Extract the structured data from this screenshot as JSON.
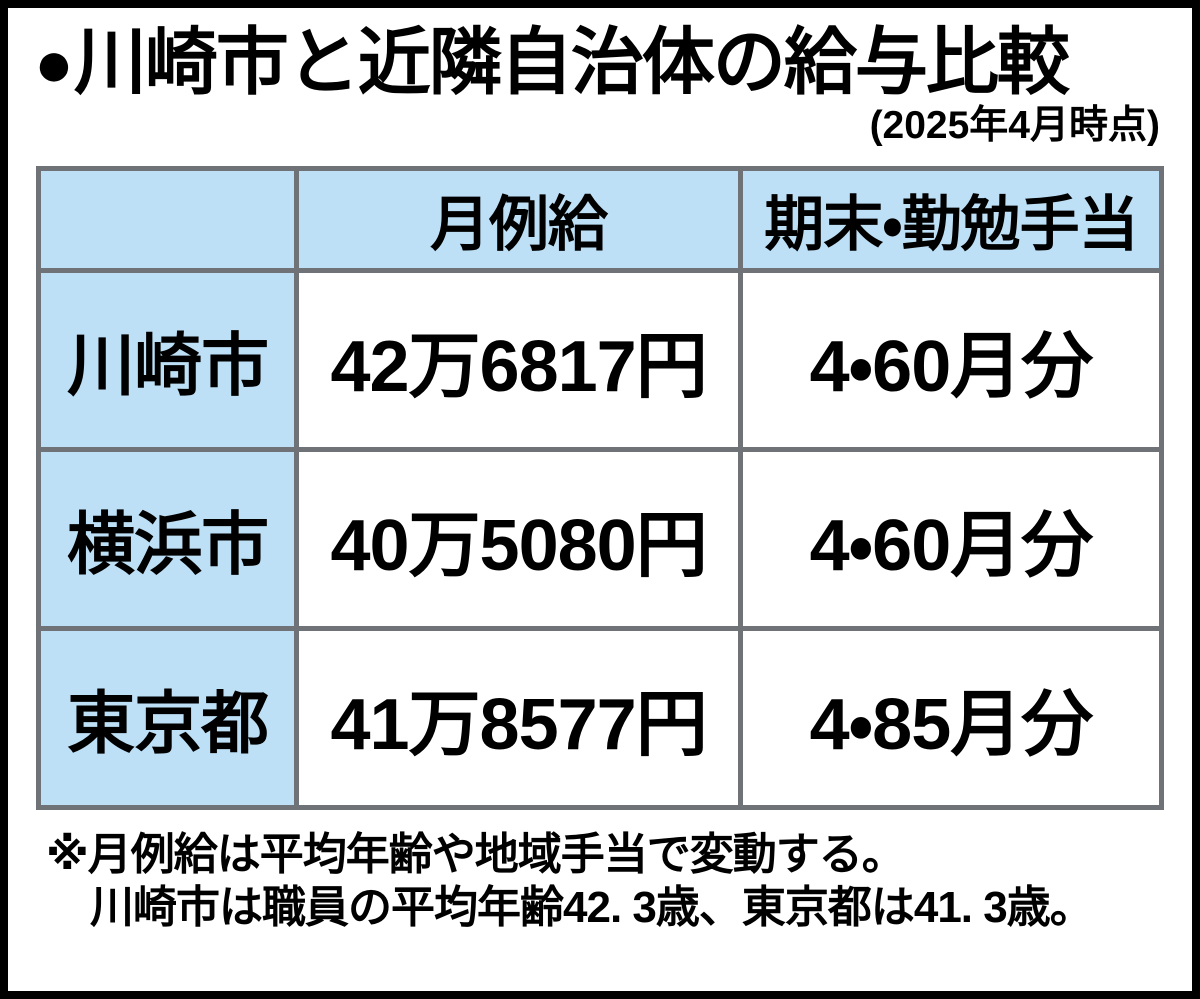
{
  "header": {
    "bullet": "●",
    "title": "川崎市と近隣自治体の給与比較",
    "subtitle": "(2025年4月時点)"
  },
  "table": {
    "columns": [
      "",
      "月例給",
      "期末・勤勉手当"
    ],
    "rows": [
      {
        "label": "川崎市",
        "monthly": "42万6817円",
        "bonus": "4・60月分"
      },
      {
        "label": "横浜市",
        "monthly": "40万5080円",
        "bonus": "4・60月分"
      },
      {
        "label": "東京都",
        "monthly": "41万8577円",
        "bonus": "4・85月分"
      }
    ]
  },
  "footnote": {
    "line1": "※月例給は平均年齢や地域手当で変動する。",
    "line2": "川崎市は職員の平均年齢42. 3歳、東京都は41. 3歳。"
  },
  "colors": {
    "highlight_cell": "#bde0f6",
    "grid_line": "#6f7378",
    "frame": "#000000",
    "background": "#ffffff",
    "text": "#000000"
  }
}
